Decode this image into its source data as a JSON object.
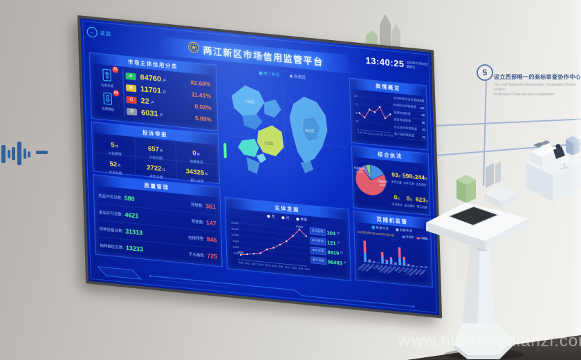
{
  "scene": {
    "watermark": "www.huarongdianzi.com",
    "wall": {
      "step_number": "5",
      "step_title_zh": "设立西部唯一的商标审查协作中心",
      "step_title_en1": "The only Trademark Examination Cooperation Center of NIPO",
      "step_title_en2": "in Western China has been established."
    }
  },
  "screen": {
    "back_label": "返回",
    "header": {
      "title": "两江新区市场信用监管平台",
      "time": "13:40:25",
      "date": "2020年07月03日",
      "weekday": "星期五"
    },
    "region_tabs": [
      {
        "label": "两江新区",
        "active": true
      },
      {
        "label": "自贸区",
        "active": false
      }
    ],
    "credit_panel": {
      "title": "市场主体信用分类",
      "upgrade": {
        "badge": "76",
        "label": "信用升级"
      },
      "downgrade": {
        "badge": "63",
        "label": "信用降级"
      },
      "rows": [
        {
          "grade": "A",
          "color": "#21c05a",
          "value": "84760",
          "unit": "户",
          "pct": "82.68%"
        },
        {
          "grade": "B",
          "color": "#e6c229",
          "value": "11701",
          "unit": "户",
          "pct": "11.41%"
        },
        {
          "grade": "C",
          "color": "#e6392e",
          "value": "22",
          "unit": "户",
          "pct": "0.02%"
        },
        {
          "grade": "D",
          "color": "#8d979e",
          "value": "6031",
          "unit": "户",
          "pct": "5.89%"
        }
      ]
    },
    "complaint_panel": {
      "title": "投诉举报",
      "cells": [
        {
          "value": "5",
          "unit": "件",
          "label": "今日受理"
        },
        {
          "value": "657",
          "unit": "件",
          "label": "正在办理"
        },
        {
          "value": "0",
          "unit": "件",
          "label": "逾期投诉"
        },
        {
          "value": "52",
          "unit": "件",
          "label": "本月办结"
        },
        {
          "value": "2722",
          "unit": "件",
          "label": "本年办结"
        },
        {
          "value": "34325",
          "unit": "件",
          "label": "累计办结"
        }
      ]
    },
    "quality_panel": {
      "title": "质量管理",
      "rows": [
        {
          "label": "药品许可总数:",
          "value": "580",
          "label2": "预警数:",
          "value2": "361"
        },
        {
          "label": "食品许可总数:",
          "value": "4621",
          "label2": "预警数:",
          "value2": "147"
        },
        {
          "label": "特种设备总数:",
          "value": "31313",
          "label2": "电梯预警:",
          "value2": "846"
        },
        {
          "label": "抽样抽检总数:",
          "value": "13233",
          "label2": "不合格数:",
          "value2": "725"
        }
      ]
    },
    "map_labels": [
      {
        "text": "北碚区"
      },
      {
        "text": "渝北区"
      },
      {
        "text": "江北区"
      }
    ],
    "development_panel": {
      "title": "主体发展",
      "legend": [
        "年",
        "月",
        "季度"
      ],
      "stats": [
        {
          "label": "本日新增",
          "value": "304",
          "unit": "户"
        },
        {
          "label": "本月新增",
          "value": "121",
          "unit": "户"
        },
        {
          "label": "本年新增",
          "value": "8919",
          "unit": "户"
        },
        {
          "label": "累计总数",
          "value": "96483",
          "unit": "户"
        }
      ]
    },
    "sentiment_panel": {
      "title": "舆情概览",
      "rows": [
        {
          "text": "全网舆情信息总量",
          "value": "18242"
        },
        {
          "text": "新闻网站舆情数量",
          "value": "162"
        },
        {
          "text": "微博舆情数量",
          "value": "98"
        },
        {
          "text": "微信舆情数量",
          "value": "86"
        },
        {
          "text": "论坛贴吧舆情数量",
          "value": "45"
        },
        {
          "text": "客户端舆情数量",
          "value": "32"
        }
      ]
    },
    "enforcement_panel": {
      "title": "综合执法",
      "pie_labels": [
        {
          "text": "行政处罚",
          "pct": "72.4%"
        },
        {
          "text": "行政检查",
          "pct": "17.2%"
        }
      ],
      "stats": [
        {
          "value": "93",
          "unit": "次",
          "label": "本月立案"
        },
        {
          "value": "598",
          "unit": "次",
          "label": "本年立案"
        },
        {
          "value": "244",
          "unit": "次",
          "label": "在办案件"
        },
        {
          "value": "0",
          "unit": "次",
          "label": "听证案件"
        },
        {
          "value": "0",
          "unit": "次",
          "label": "复议案件"
        },
        {
          "value": "623",
          "unit": "次",
          "label": "累计结案"
        }
      ]
    },
    "random_panel": {
      "title": "双随机监管",
      "radios": [
        {
          "label": "检查任务",
          "active": true
        },
        {
          "label": "自查任务",
          "active": false
        }
      ],
      "date_range": "2019年03月01日-2020年07月03日",
      "legend": [
        {
          "label": "任务数",
          "color": "#4aa3ff"
        },
        {
          "label": "问题数",
          "color": "#ff5f7e"
        }
      ]
    }
  },
  "chart_data": [
    {
      "id": "development_line",
      "type": "line",
      "title": "主体发展",
      "x": [
        "2010",
        "2011",
        "2012",
        "2013",
        "2014",
        "2015",
        "2016",
        "2017",
        "2018",
        "2019",
        "2020"
      ],
      "values": [
        2408,
        3050,
        3620,
        4230,
        6400,
        7520,
        9400,
        11420,
        14350,
        17934,
        14860
      ],
      "ylim": [
        0,
        18000
      ],
      "yticks": [
        "0",
        "3,000",
        "6,000",
        "9,000",
        "12,000",
        "15,000",
        "18,000"
      ],
      "annotations": [
        {
          "index": 0,
          "text": "2408"
        },
        {
          "index": 9,
          "text": "17934"
        }
      ],
      "line_color": "#ff6f87",
      "point_color": "#ffffff",
      "xlabel": "",
      "ylabel": ""
    },
    {
      "id": "sentiment_line",
      "type": "line",
      "title": "舆情概览",
      "x": [
        "1-29",
        "2-5",
        "2-12",
        "2-19",
        "2-26",
        "3-4",
        "3-11"
      ],
      "values": [
        50,
        38,
        63,
        57,
        74,
        42,
        55
      ],
      "ylim": [
        0,
        100
      ],
      "yticks": [
        "0",
        "25",
        "50",
        "75",
        "100"
      ],
      "line_color": "#ff6f87",
      "point_color": "#ffffff",
      "xlabel": "",
      "ylabel": ""
    },
    {
      "id": "enforcement_pie",
      "type": "pie",
      "title": "综合执法",
      "slices": [
        {
          "label": "行政检查",
          "value": 17.2,
          "color": "#4a90e2"
        },
        {
          "label": "行政处罚",
          "value": 72.4,
          "color": "#e05c6e"
        },
        {
          "label": "其他",
          "value": 5.2,
          "color": "#9b6fd8"
        },
        {
          "label": "行政强制",
          "value": 5.2,
          "color": "#7ed37e"
        }
      ]
    },
    {
      "id": "random_bars",
      "type": "bar",
      "stacked": true,
      "title": "双随机监管",
      "categories": [
        "市场监管局",
        "生态环境局",
        "城市管理局",
        "交通局",
        "建设局",
        "卫生健康委",
        "应急管理局",
        "文化旅游委",
        "教育局",
        "公安分局",
        "税务局",
        "人力社保局",
        "规划资源局",
        "消防支队",
        "其他部门"
      ],
      "series": [
        {
          "name": "任务数",
          "color": "#4aa3ff",
          "values": [
            34,
            8,
            4,
            2,
            25,
            10,
            21,
            6,
            30,
            21,
            5,
            3,
            2,
            3,
            4
          ]
        },
        {
          "name": "问题数",
          "color": "#ff5f7e",
          "values": [
            46,
            2,
            1,
            0,
            18,
            6,
            6,
            3,
            38,
            12,
            3,
            1,
            0,
            1,
            1
          ]
        }
      ],
      "ylim": [
        0,
        90
      ]
    }
  ]
}
